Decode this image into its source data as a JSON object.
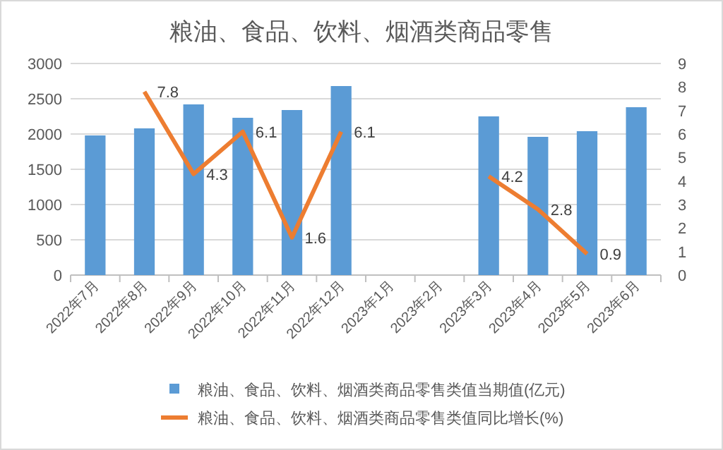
{
  "chart_data": {
    "type": "bar",
    "title": "粮油、食品、饮料、烟酒类商品零售",
    "categories": [
      "2022年7月",
      "2022年8月",
      "2022年9月",
      "2022年10月",
      "2022年11月",
      "2022年12月",
      "2023年1月",
      "2023年2月",
      "2023年3月",
      "2023年4月",
      "2023年5月",
      "2023年6月"
    ],
    "series": [
      {
        "name": "粮油、食品、饮料、烟酒类商品零售类值当期值(亿元)",
        "color": "#5b9bd5",
        "values": [
          1980,
          2080,
          2420,
          2230,
          2340,
          2680,
          null,
          null,
          2250,
          1960,
          2040,
          2380
        ]
      },
      {
        "name": "粮油、食品、饮料、烟酒类商品零售类值同比增长(%)",
        "type": "line",
        "axis": "y2",
        "color": "#ed7d31",
        "values": [
          null,
          7.8,
          4.3,
          6.1,
          1.6,
          6.1,
          null,
          null,
          4.2,
          2.8,
          0.9,
          null
        ],
        "value_labels": [
          null,
          "7.8",
          "4.3",
          "6.1",
          "1.6",
          "6.1",
          null,
          null,
          "4.2",
          "2.8",
          "0.9",
          null
        ]
      }
    ],
    "ylim": [
      0,
      3000
    ],
    "yticks": [
      0,
      500,
      1000,
      1500,
      2000,
      2500,
      3000
    ],
    "y2lim": [
      0,
      9
    ],
    "y2ticks": [
      0,
      1,
      2,
      3,
      4,
      5,
      6,
      7,
      8,
      9
    ],
    "grid": "y",
    "legend": "bottom",
    "marker": "none"
  }
}
